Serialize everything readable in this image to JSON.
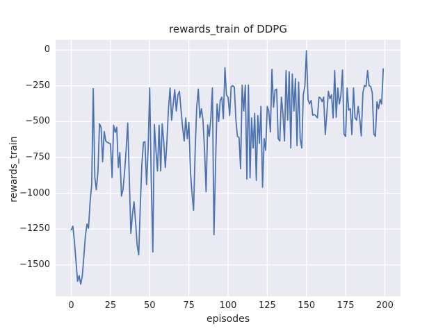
{
  "chart_data": {
    "type": "line",
    "title": "rewards_train of DDPG",
    "xlabel": "episodes",
    "ylabel": "rewards_train",
    "legend": "none",
    "grid": true,
    "xlim": [
      -10,
      210
    ],
    "ylim": [
      -1720,
      70
    ],
    "x_start": 0,
    "x_step": 1,
    "x_ticks": [
      {
        "value": 0,
        "label": "0"
      },
      {
        "value": 25,
        "label": "25"
      },
      {
        "value": 50,
        "label": "50"
      },
      {
        "value": 75,
        "label": "75"
      },
      {
        "value": 100,
        "label": "100"
      },
      {
        "value": 125,
        "label": "125"
      },
      {
        "value": 150,
        "label": "150"
      },
      {
        "value": 175,
        "label": "175"
      },
      {
        "value": 200,
        "label": "200"
      }
    ],
    "y_ticks": [
      {
        "value": 0,
        "label": "0"
      },
      {
        "value": -250,
        "label": "−250"
      },
      {
        "value": -500,
        "label": "−500"
      },
      {
        "value": -750,
        "label": "−750"
      },
      {
        "value": -1000,
        "label": "−1000"
      },
      {
        "value": -1250,
        "label": "−1250"
      },
      {
        "value": -1500,
        "label": "−1500"
      }
    ],
    "series_name": "rewards_train",
    "values": [
      -1255,
      -1230,
      -1340,
      -1475,
      -1615,
      -1575,
      -1635,
      -1580,
      -1440,
      -1300,
      -1215,
      -1245,
      -1060,
      -940,
      -270,
      -890,
      -975,
      -845,
      -515,
      -540,
      -780,
      -570,
      -635,
      -645,
      -650,
      -655,
      -890,
      -525,
      -575,
      -540,
      -820,
      -716,
      -1020,
      -975,
      -850,
      -690,
      -510,
      -900,
      -1280,
      -1150,
      -1060,
      -1200,
      -1360,
      -1430,
      -1100,
      -800,
      -645,
      -640,
      -940,
      -700,
      -265,
      -900,
      -1410,
      -520,
      -700,
      -845,
      -525,
      -845,
      -515,
      -650,
      -820,
      -635,
      -410,
      -265,
      -490,
      -380,
      -277,
      -426,
      -313,
      -289,
      -420,
      -540,
      -635,
      -474,
      -619,
      -506,
      -845,
      -1000,
      -1119,
      -700,
      -400,
      -273,
      -474,
      -410,
      -490,
      -700,
      -990,
      -523,
      -603,
      -480,
      -265,
      -1289,
      -800,
      -377,
      -500,
      -353,
      -329,
      -480,
      -123,
      -313,
      -330,
      -458,
      -255,
      -250,
      -260,
      -490,
      -603,
      -610,
      -829,
      -245,
      -426,
      -245,
      -901,
      -245,
      -893,
      -474,
      -684,
      -442,
      -910,
      -458,
      -652,
      -394,
      -958,
      -619,
      -700,
      -394,
      -426,
      -571,
      -135,
      -400,
      -280,
      -273,
      -619,
      -635,
      -329,
      -442,
      -635,
      -144,
      -490,
      -152,
      -684,
      -168,
      -426,
      -200,
      -668,
      -224,
      -619,
      -684,
      -313,
      -250,
      -5,
      -345,
      -377,
      -353,
      -455,
      -450,
      -460,
      -474,
      -329,
      -335,
      -361,
      -329,
      -590,
      -450,
      -289,
      -340,
      -313,
      -474,
      -144,
      -470,
      -265,
      -377,
      -313,
      -139,
      -587,
      -603,
      -265,
      -420,
      -410,
      -590,
      -265,
      -474,
      -490,
      -394,
      -480,
      -600,
      -300,
      -248,
      -255,
      -144,
      -250,
      -255,
      -300,
      -587,
      -603,
      -361,
      -410,
      -345,
      -377,
      -132
    ],
    "colors": {
      "line": "#4c72b0",
      "plot_bg": "#eaeaf2",
      "grid": "#ffffff",
      "figure_bg": "#ffffff",
      "text": "#262626"
    }
  }
}
